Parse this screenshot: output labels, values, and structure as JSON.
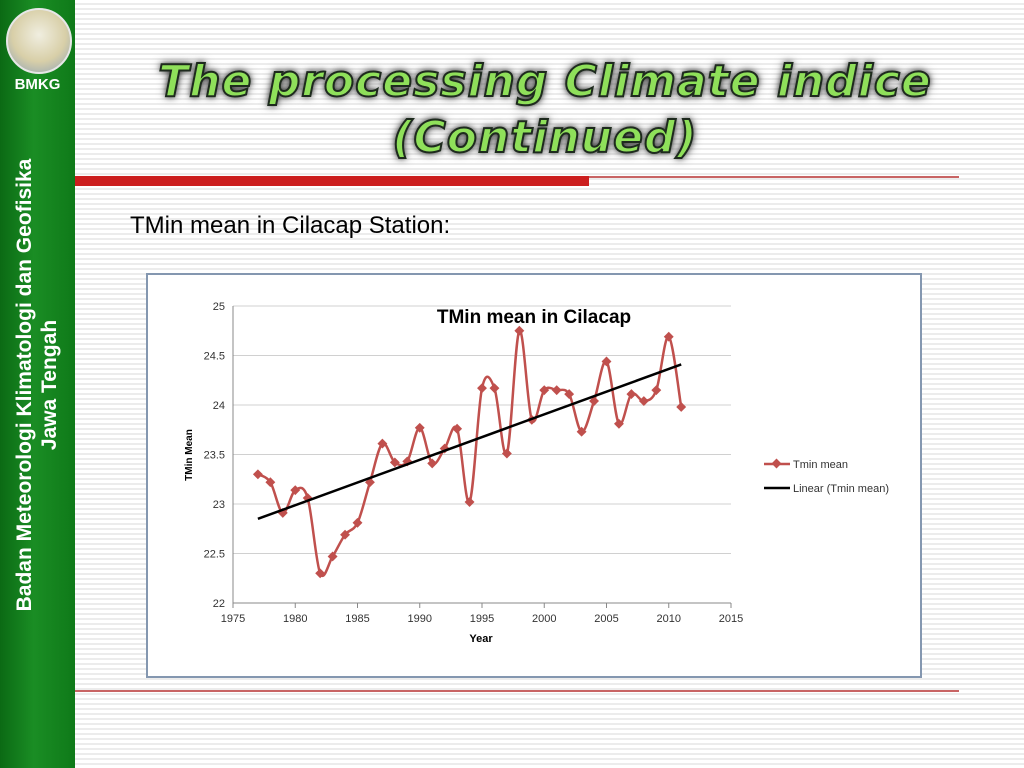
{
  "sidebar": {
    "logo_text": "BMKG",
    "vertical_line1": "Badan Meteorologi Klimatologi dan Geofisika",
    "vertical_line2": "Jawa Tengah"
  },
  "title": {
    "line1": "The processing Climate indice",
    "line2": "(Continued)"
  },
  "subtitle": "TMin mean in Cilacap Station:",
  "colors": {
    "sidebar_green": "#127a1c",
    "title_green": "#8fe05a",
    "red_bar": "#cc1f1f",
    "series": "#c0504d",
    "trend": "#000000"
  },
  "chart_data": {
    "type": "line",
    "title": "TMin mean in Cilacap",
    "xlabel": "Year",
    "ylabel": "TMin Mean",
    "xlim": [
      1975,
      2015
    ],
    "ylim": [
      22,
      25
    ],
    "x_ticks": [
      "1975",
      "1980",
      "1985",
      "1990",
      "1995",
      "2000",
      "2005",
      "2010",
      "2015"
    ],
    "y_ticks": [
      "22",
      "22.5",
      "23",
      "23.5",
      "24",
      "24.5",
      "25"
    ],
    "grid": "horizontal",
    "legend_position": "right",
    "series": [
      {
        "name": "Tmin mean",
        "marker": "diamond",
        "smooth": true,
        "x": [
          1977,
          1978,
          1979,
          1980,
          1981,
          1982,
          1983,
          1984,
          1985,
          1986,
          1987,
          1988,
          1989,
          1990,
          1991,
          1992,
          1993,
          1994,
          1995,
          1996,
          1997,
          1998,
          1999,
          2000,
          2001,
          2002,
          2003,
          2004,
          2005,
          2006,
          2007,
          2008,
          2009,
          2010,
          2011
        ],
        "y": [
          23.3,
          23.22,
          22.91,
          23.14,
          23.06,
          22.3,
          22.47,
          22.69,
          22.81,
          23.22,
          23.61,
          23.42,
          23.43,
          23.77,
          23.41,
          23.56,
          23.76,
          23.02,
          24.17,
          24.17,
          23.51,
          24.75,
          23.85,
          24.15,
          24.15,
          24.11,
          23.73,
          24.04,
          24.44,
          23.81,
          24.11,
          24.04,
          24.15,
          24.69,
          23.98
        ]
      },
      {
        "name": "Linear (Tmin mean)",
        "type": "trendline",
        "x": [
          1977,
          2011
        ],
        "y": [
          22.85,
          24.41
        ]
      }
    ]
  }
}
